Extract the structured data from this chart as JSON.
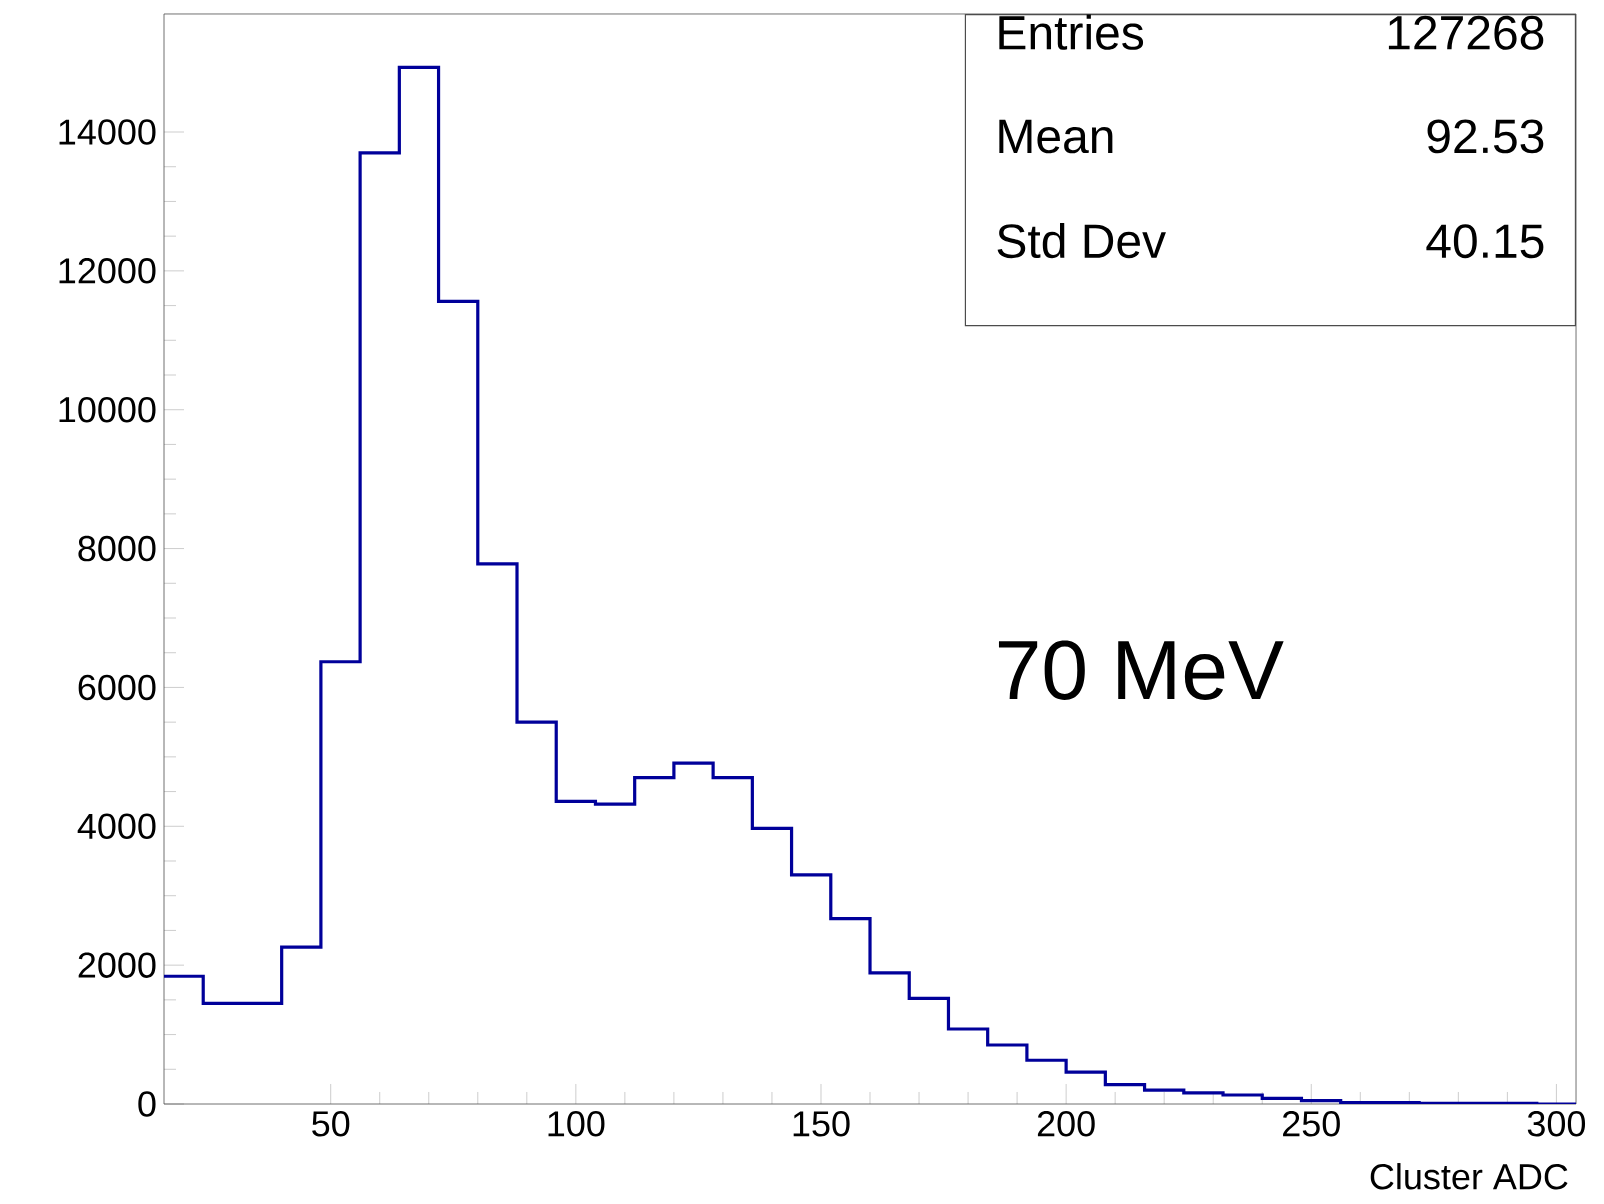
{
  "chart_data": {
    "type": "histogram",
    "xlabel": "Cluster ADC",
    "bins": [
      16,
      24,
      32,
      40,
      48,
      56,
      64,
      72,
      80,
      88,
      96,
      104,
      112,
      120,
      128,
      136,
      144,
      152,
      160,
      168,
      176,
      184,
      192,
      200,
      208,
      216,
      224,
      232,
      240,
      248,
      256,
      264,
      272,
      280,
      288,
      296,
      304
    ],
    "values": [
      1840,
      1450,
      1450,
      2260,
      6370,
      13700,
      14930,
      11560,
      7780,
      5500,
      4360,
      4320,
      4700,
      4910,
      4700,
      3970,
      3300,
      2670,
      1890,
      1520,
      1080,
      850,
      630,
      460,
      280,
      200,
      160,
      130,
      80,
      50,
      20,
      20,
      10,
      10,
      10,
      0
    ],
    "color": "#00009a",
    "xlim": [
      16,
      304
    ],
    "xticks": [
      50,
      100,
      150,
      200,
      250,
      300
    ],
    "ylim": [
      0,
      15700
    ],
    "yticks": [
      0,
      2000,
      4000,
      6000,
      8000,
      10000,
      12000,
      14000
    ],
    "annotations": [
      "Entries",
      "127268",
      "Mean",
      "92.53",
      "Std Dev",
      "40.15",
      "70 MeV"
    ],
    "grid": false
  }
}
